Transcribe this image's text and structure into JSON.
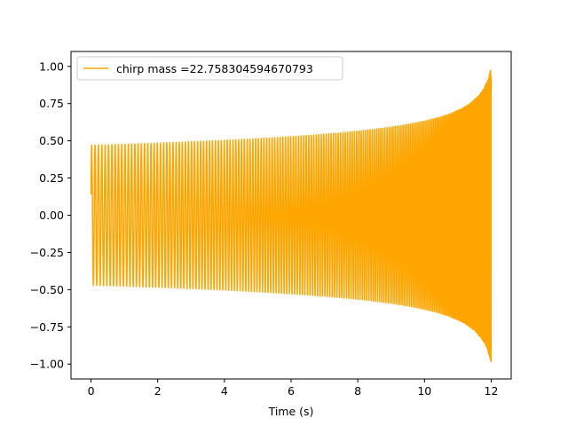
{
  "chart_data": {
    "type": "line",
    "title": "",
    "xlabel": "Time (s)",
    "ylabel": "",
    "xlim": [
      -0.6,
      12.6
    ],
    "ylim": [
      -1.1,
      1.1
    ],
    "xticks": [
      0,
      2,
      4,
      6,
      8,
      10,
      12
    ],
    "xtick_labels": [
      "0",
      "2",
      "4",
      "6",
      "8",
      "10",
      "12"
    ],
    "yticks": [
      -1.0,
      -0.75,
      -0.5,
      -0.25,
      0.0,
      0.25,
      0.5,
      0.75,
      1.0
    ],
    "ytick_labels": [
      "−1.00",
      "−0.75",
      "−0.50",
      "−0.25",
      "0.00",
      "0.25",
      "0.50",
      "0.75",
      "1.00"
    ],
    "grid": false,
    "legend_position": "upper-left",
    "series": [
      {
        "name": "chirp mass =22.758304594670793",
        "color": "#FFA500",
        "x_range": [
          0,
          12
        ],
        "coalescence_time": 12.15,
        "envelope_start": 0.47,
        "envelope_end": 1.0,
        "cycles_drawn": 180,
        "start_value": 0.14,
        "end_value": 0.93
      }
    ]
  }
}
